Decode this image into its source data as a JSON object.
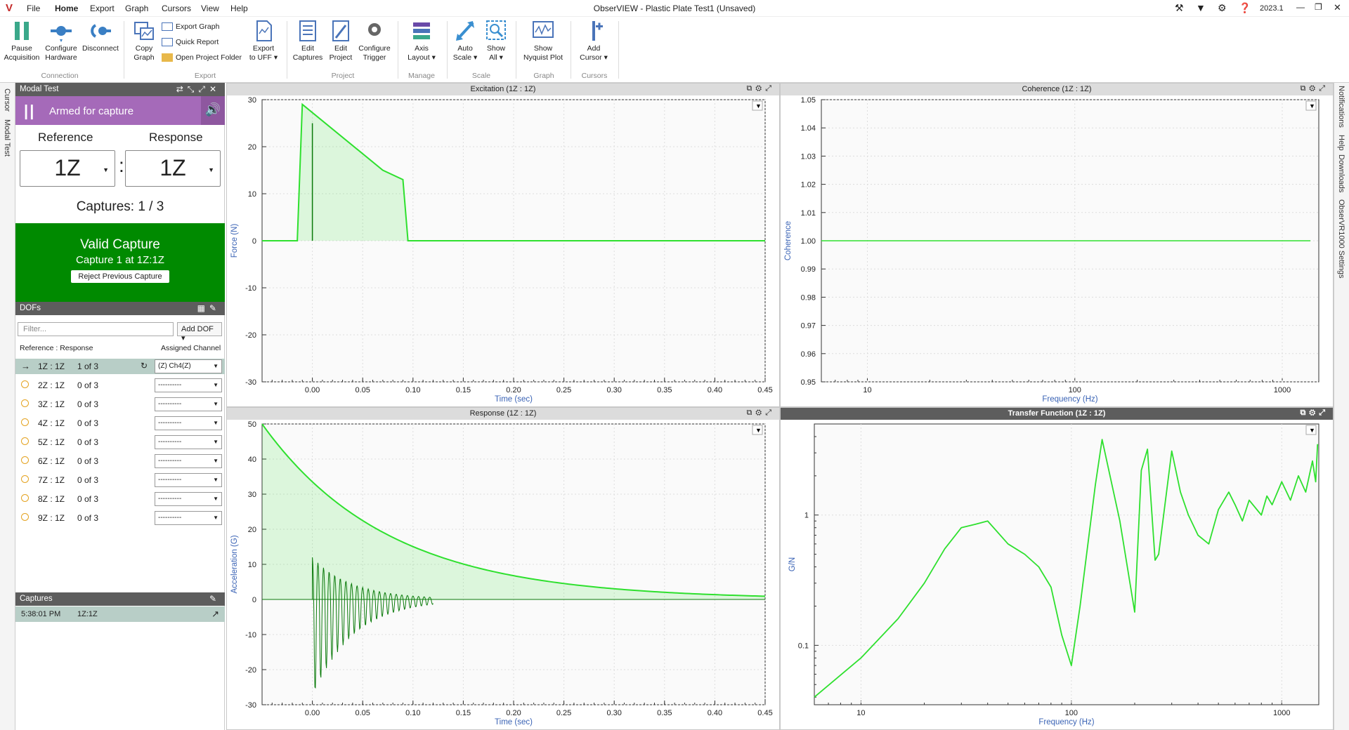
{
  "app": {
    "title": "ObserVIEW - Plastic Plate Test1 (Unsaved)",
    "version": "2023.1",
    "logo": "V",
    "menu": [
      "File",
      "Home",
      "Export",
      "Graph",
      "Cursors",
      "View",
      "Help"
    ],
    "active_menu": "Home"
  },
  "ribbon": {
    "pause": "Pause\nAcquisition",
    "configure_hw": "Configure\nHardware",
    "disconnect": "Disconnect",
    "copy_graph": "Copy\nGraph",
    "export_graph": "Export Graph",
    "quick_report": "Quick Report",
    "open_folder": "Open Project Folder",
    "export_uff": "Export\nto UFF ▾",
    "edit_captures": "Edit\nCaptures",
    "edit_project": "Edit\nProject",
    "configure_trigger": "Configure\nTrigger",
    "axis_layout": "Axis\nLayout ▾",
    "auto_scale": "Auto\nScale ▾",
    "show_all": "Show\nAll ▾",
    "show_nyquist": "Show\nNyquist Plot",
    "add_cursor": "Add\nCursor ▾",
    "groups": {
      "connection": "Connection",
      "export": "Export",
      "project": "Project",
      "manage": "Manage",
      "scale": "Scale",
      "graph": "Graph",
      "cursors": "Cursors"
    }
  },
  "left_strip": {
    "cursor": "Cursor",
    "modal_test": "Modal Test"
  },
  "right_strip": {
    "notifications": "Notifications",
    "help": "Help",
    "downloads": "Downloads",
    "settings": "ObserVR1000 Settings"
  },
  "modal_panel": {
    "title": "Modal Test",
    "armed": "Armed for capture",
    "reference_label": "Reference",
    "response_label": "Response",
    "reference_value": "1Z",
    "response_value": "1Z",
    "colon": ":",
    "captures": "Captures: 1 / 3",
    "valid_title": "Valid Capture",
    "valid_sub": "Capture 1 at 1Z:1Z",
    "reject_btn": "Reject Previous Capture",
    "dofs_title": "DOFs",
    "filter_placeholder": "Filter...",
    "add_dof": "Add DOF ▾",
    "col_ref_resp": "Reference : Response",
    "col_channel": "Assigned Channel",
    "dofs": [
      {
        "name": "1Z : 1Z",
        "count": "1 of 3",
        "channel": "(Z) Ch4(Z)",
        "active": true
      },
      {
        "name": "2Z : 1Z",
        "count": "0 of 3",
        "channel": "----------",
        "active": false
      },
      {
        "name": "3Z : 1Z",
        "count": "0 of 3",
        "channel": "----------",
        "active": false
      },
      {
        "name": "4Z : 1Z",
        "count": "0 of 3",
        "channel": "----------",
        "active": false
      },
      {
        "name": "5Z : 1Z",
        "count": "0 of 3",
        "channel": "----------",
        "active": false
      },
      {
        "name": "6Z : 1Z",
        "count": "0 of 3",
        "channel": "----------",
        "active": false
      },
      {
        "name": "7Z : 1Z",
        "count": "0 of 3",
        "channel": "----------",
        "active": false
      },
      {
        "name": "8Z : 1Z",
        "count": "0 of 3",
        "channel": "----------",
        "active": false
      },
      {
        "name": "9Z : 1Z",
        "count": "0 of 3",
        "channel": "----------",
        "active": false
      }
    ],
    "captures_title": "Captures",
    "capture_list": [
      {
        "time": "5:38:01 PM",
        "dof": "1Z:1Z"
      }
    ]
  },
  "colors": {
    "accent_purple": "#a56ab9",
    "valid_green": "#008a00",
    "trace_green": "#2ee02e",
    "axis_blue": "#3a63b5"
  },
  "chart_data": [
    {
      "id": "excitation",
      "type": "area",
      "title": "Excitation (1Z : 1Z)",
      "xlabel": "Time (sec)",
      "ylabel": "Force (N)",
      "xlim": [
        -0.05,
        0.45
      ],
      "ylim": [
        -30,
        30
      ],
      "xticks": [
        "0.00",
        "0.05",
        "0.10",
        "0.15",
        "0.20",
        "0.25",
        "0.30",
        "0.35",
        "0.40",
        "0.45"
      ],
      "yticks": [
        "30",
        "20",
        "10",
        "0",
        "-10",
        "-20",
        "-30"
      ],
      "series": [
        {
          "x": [
            -0.05,
            -0.015,
            -0.01,
            0.07,
            0.09,
            0.095,
            0.45
          ],
          "y": [
            0,
            0,
            29,
            15,
            13,
            0,
            0
          ]
        }
      ],
      "spike": {
        "x": 0.0,
        "y": [
          0,
          25
        ]
      }
    },
    {
      "id": "coherence",
      "type": "line",
      "title": "Coherence (1Z : 1Z)",
      "xlabel": "Frequency (Hz)",
      "ylabel": "Coherence",
      "xscale": "log",
      "xlim": [
        6,
        1500
      ],
      "ylim": [
        0.95,
        1.05
      ],
      "xticks": [
        10,
        100,
        1000
      ],
      "yticks": [
        "1.05",
        "1.04",
        "1.03",
        "1.02",
        "1.01",
        "1.00",
        "0.99",
        "0.98",
        "0.97",
        "0.96",
        "0.95"
      ],
      "series": [
        {
          "x": [
            6,
            1500
          ],
          "y": [
            1.0,
            1.0
          ]
        }
      ]
    },
    {
      "id": "response",
      "type": "area",
      "title": "Response (1Z : 1Z)",
      "xlabel": "Time (sec)",
      "ylabel": "Acceleration (G)",
      "xlim": [
        -0.05,
        0.45
      ],
      "ylim": [
        -30,
        50
      ],
      "xticks": [
        "0.00",
        "0.05",
        "0.10",
        "0.15",
        "0.20",
        "0.25",
        "0.30",
        "0.35",
        "0.40",
        "0.45"
      ],
      "yticks": [
        "50",
        "40",
        "30",
        "20",
        "10",
        "0",
        "-10",
        "-20",
        "-30"
      ],
      "series": [
        {
          "name": "window",
          "x0": -0.05,
          "x1": 0.45,
          "y0": 50,
          "tau": 0.125
        }
      ],
      "ringdown": {
        "x0": 0.0,
        "amp_pos": 12,
        "amp_neg": -28,
        "decay": 0.04,
        "end": 0.12
      }
    },
    {
      "id": "transfer",
      "type": "line",
      "title": "Transfer Function (1Z : 1Z)",
      "xlabel": "Frequency (Hz)",
      "ylabel": "G/N",
      "xscale": "log",
      "yscale": "log",
      "xlim": [
        6,
        1500
      ],
      "ylim": [
        0.035,
        5
      ],
      "xticks": [
        10,
        100,
        1000
      ],
      "yticks": [
        "1",
        "0.1"
      ],
      "series": [
        {
          "x": [
            6,
            10,
            15,
            20,
            25,
            30,
            35,
            40,
            50,
            60,
            70,
            80,
            90,
            100,
            110,
            130,
            140,
            170,
            200,
            215,
            230,
            250,
            260,
            300,
            330,
            360,
            400,
            450,
            500,
            560,
            600,
            650,
            700,
            800,
            850,
            900,
            1000,
            1100,
            1200,
            1300,
            1400,
            1450,
            1480
          ],
          "y": [
            0.04,
            0.08,
            0.16,
            0.3,
            0.55,
            0.8,
            0.85,
            0.9,
            0.6,
            0.5,
            0.4,
            0.28,
            0.12,
            0.07,
            0.2,
            1.7,
            3.8,
            0.9,
            0.18,
            2.2,
            3.2,
            0.45,
            0.5,
            3.1,
            1.5,
            1.0,
            0.7,
            0.6,
            1.1,
            1.5,
            1.2,
            0.9,
            1.3,
            1.0,
            1.4,
            1.2,
            1.8,
            1.3,
            2.0,
            1.5,
            2.6,
            1.8,
            3.5
          ]
        }
      ]
    }
  ]
}
